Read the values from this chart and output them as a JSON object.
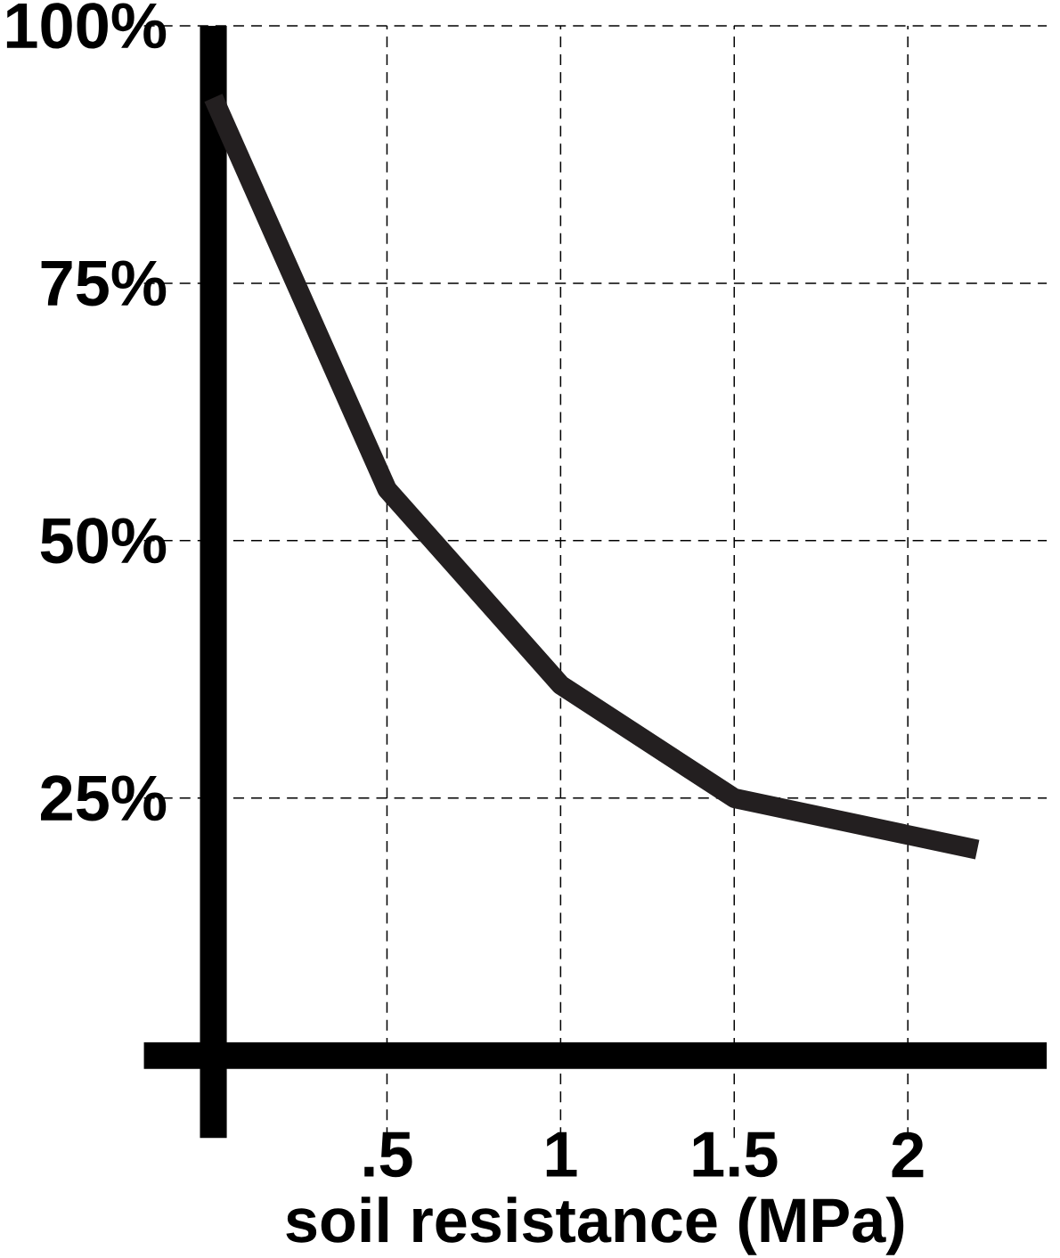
{
  "chart_data": {
    "type": "line",
    "xlabel": "soil  resistance (MPa)",
    "x": [
      0,
      0.5,
      1,
      1.5,
      2.2
    ],
    "values": [
      93,
      55,
      36,
      25,
      20
    ],
    "color": "#231f20",
    "marker": "none",
    "xlim": [
      -0.2,
      2.4
    ],
    "ylim": [
      -8,
      100
    ],
    "xticks": [
      {
        "value": 0.5,
        "label": ".5"
      },
      {
        "value": 1,
        "label": "1"
      },
      {
        "value": 1.5,
        "label": "1.5"
      },
      {
        "value": 2,
        "label": "2"
      }
    ],
    "yticks": [
      {
        "value": 25,
        "label": "25%"
      },
      {
        "value": 50,
        "label": "50%"
      },
      {
        "value": 75,
        "label": "75%"
      },
      {
        "value": 100,
        "label": "100%"
      }
    ],
    "grid": true
  }
}
